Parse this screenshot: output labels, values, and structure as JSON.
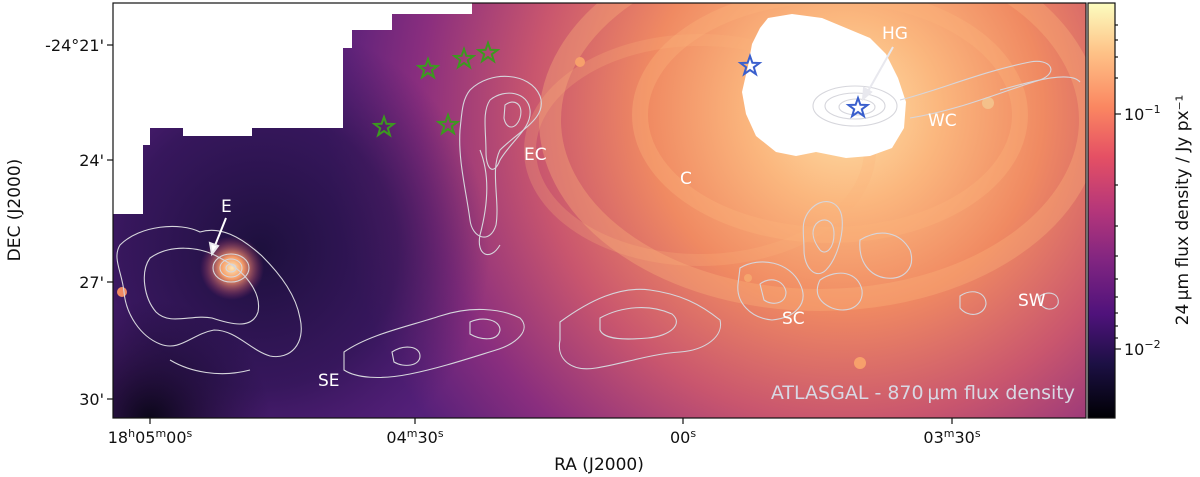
{
  "figure": {
    "xlabel": "RA (J2000)",
    "ylabel": "DEC (J2000)",
    "colorbar_label": "24 μm flux density / Jy px⁻¹",
    "overlay_label": "ATLASGAL - 870 μm flux density",
    "x_ticks": [
      "18h05m00s",
      "04m30s",
      "00s",
      "03m30s"
    ],
    "y_ticks": [
      "-24°21'",
      "24'",
      "27'",
      "30'"
    ],
    "colorbar_ticks": [
      "10⁻¹",
      "10⁻²"
    ],
    "regions": [
      "HG",
      "WC",
      "EC",
      "C",
      "E",
      "SC",
      "SW",
      "SE"
    ],
    "colors": {
      "green_star": "#3c9a1f",
      "blue_star": "#3a5fcd",
      "contour": "#d6d6dc",
      "region_label": "#ffffff"
    },
    "colormap": "magma"
  }
}
